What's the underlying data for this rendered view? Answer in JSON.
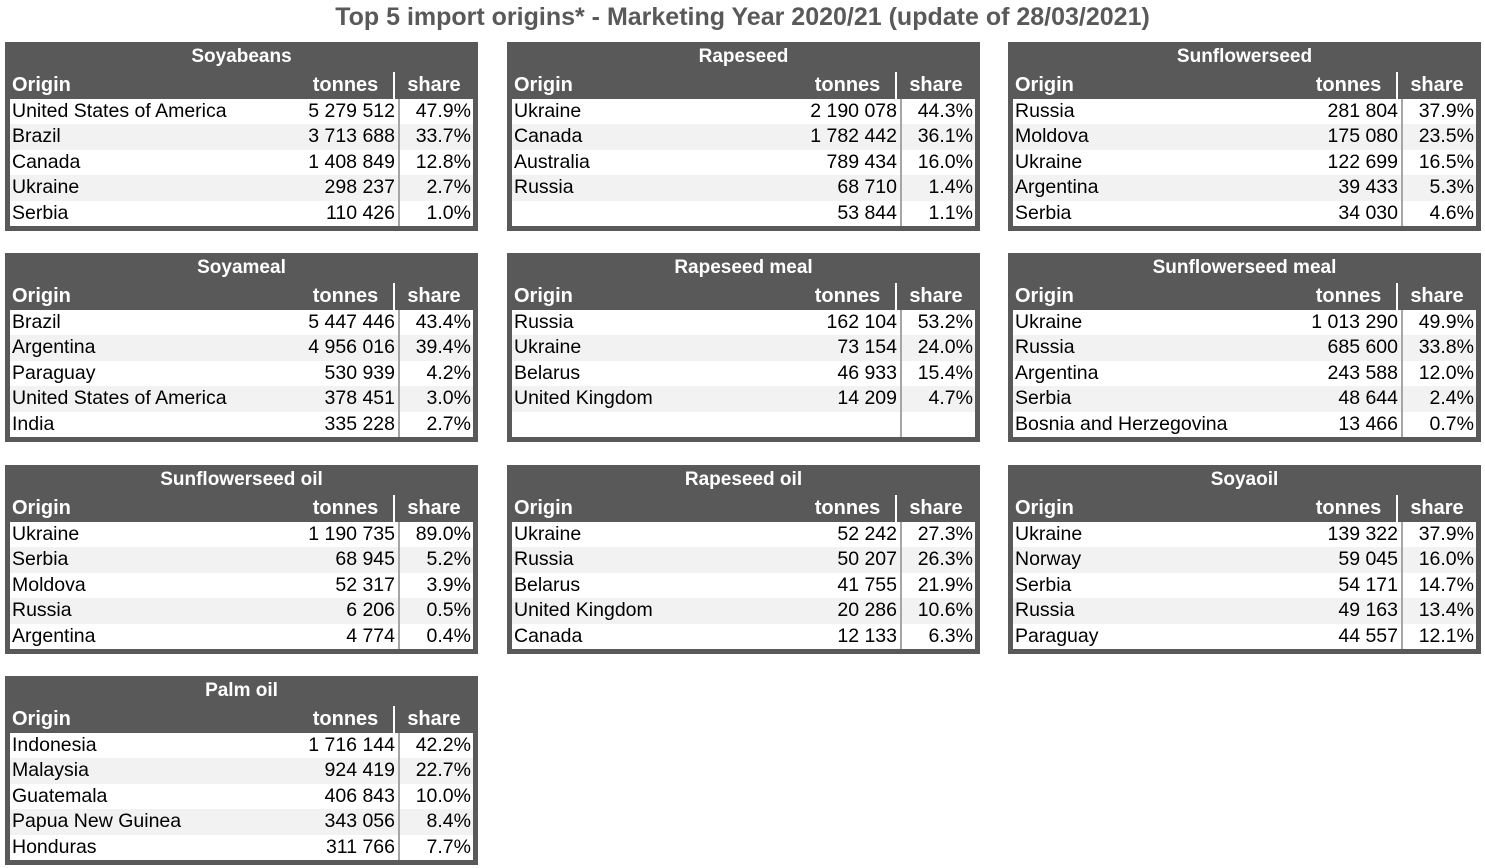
{
  "title": "Top 5 import origins* - Marketing Year 2020/21 (update of 28/03/2021)",
  "colors": {
    "header_bg": "#595959",
    "title_text": "#595959",
    "stripe": "#f2f2f2"
  },
  "columns": {
    "origin": "Origin",
    "tonnes": "tonnes",
    "share": "share"
  },
  "panels": [
    {
      "title": "Soyabeans",
      "rows": [
        {
          "origin": "United States of America",
          "tonnes": "5 279 512",
          "share": "47.9%"
        },
        {
          "origin": "Brazil",
          "tonnes": "3 713 688",
          "share": "33.7%"
        },
        {
          "origin": "Canada",
          "tonnes": "1 408 849",
          "share": "12.8%"
        },
        {
          "origin": "Ukraine",
          "tonnes": "298 237",
          "share": "2.7%"
        },
        {
          "origin": "Serbia",
          "tonnes": "110 426",
          "share": "1.0%"
        }
      ]
    },
    {
      "title": "Rapeseed",
      "rows": [
        {
          "origin": "Ukraine",
          "tonnes": "2 190 078",
          "share": "44.3%"
        },
        {
          "origin": "Canada",
          "tonnes": "1 782 442",
          "share": "36.1%"
        },
        {
          "origin": "Australia",
          "tonnes": "789 434",
          "share": "16.0%"
        },
        {
          "origin": "Russia",
          "tonnes": "68 710",
          "share": "1.4%"
        },
        {
          "origin": "",
          "tonnes": "53 844",
          "share": "1.1%"
        }
      ]
    },
    {
      "title": "Sunflowerseed",
      "rows": [
        {
          "origin": "Russia",
          "tonnes": "281 804",
          "share": "37.9%"
        },
        {
          "origin": "Moldova",
          "tonnes": "175 080",
          "share": "23.5%"
        },
        {
          "origin": "Ukraine",
          "tonnes": "122 699",
          "share": "16.5%"
        },
        {
          "origin": "Argentina",
          "tonnes": "39 433",
          "share": "5.3%"
        },
        {
          "origin": "Serbia",
          "tonnes": "34 030",
          "share": "4.6%"
        }
      ]
    },
    {
      "title": "Soyameal",
      "rows": [
        {
          "origin": "Brazil",
          "tonnes": "5 447 446",
          "share": "43.4%"
        },
        {
          "origin": "Argentina",
          "tonnes": "4 956 016",
          "share": "39.4%"
        },
        {
          "origin": "Paraguay",
          "tonnes": "530 939",
          "share": "4.2%"
        },
        {
          "origin": "United States of America",
          "tonnes": "378 451",
          "share": "3.0%"
        },
        {
          "origin": "India",
          "tonnes": "335 228",
          "share": "2.7%"
        }
      ]
    },
    {
      "title": "Rapeseed meal",
      "rows": [
        {
          "origin": "Russia",
          "tonnes": "162 104",
          "share": "53.2%"
        },
        {
          "origin": "Ukraine",
          "tonnes": "73 154",
          "share": "24.0%"
        },
        {
          "origin": "Belarus",
          "tonnes": "46 933",
          "share": "15.4%"
        },
        {
          "origin": "United Kingdom",
          "tonnes": "14 209",
          "share": "4.7%"
        },
        {
          "origin": "",
          "tonnes": "",
          "share": ""
        }
      ]
    },
    {
      "title": "Sunflowerseed meal",
      "rows": [
        {
          "origin": "Ukraine",
          "tonnes": "1 013 290",
          "share": "49.9%"
        },
        {
          "origin": "Russia",
          "tonnes": "685 600",
          "share": "33.8%"
        },
        {
          "origin": "Argentina",
          "tonnes": "243 588",
          "share": "12.0%"
        },
        {
          "origin": "Serbia",
          "tonnes": "48 644",
          "share": "2.4%"
        },
        {
          "origin": "Bosnia and Herzegovina",
          "tonnes": "13 466",
          "share": "0.7%"
        }
      ]
    },
    {
      "title": "Sunflowerseed oil",
      "rows": [
        {
          "origin": "Ukraine",
          "tonnes": "1 190 735",
          "share": "89.0%"
        },
        {
          "origin": "Serbia",
          "tonnes": "68 945",
          "share": "5.2%"
        },
        {
          "origin": "Moldova",
          "tonnes": "52 317",
          "share": "3.9%"
        },
        {
          "origin": "Russia",
          "tonnes": "6 206",
          "share": "0.5%"
        },
        {
          "origin": "Argentina",
          "tonnes": "4 774",
          "share": "0.4%"
        }
      ]
    },
    {
      "title": "Rapeseed oil",
      "rows": [
        {
          "origin": "Ukraine",
          "tonnes": "52 242",
          "share": "27.3%"
        },
        {
          "origin": "Russia",
          "tonnes": "50 207",
          "share": "26.3%"
        },
        {
          "origin": "Belarus",
          "tonnes": "41 755",
          "share": "21.9%"
        },
        {
          "origin": "United Kingdom",
          "tonnes": "20 286",
          "share": "10.6%"
        },
        {
          "origin": "Canada",
          "tonnes": "12 133",
          "share": "6.3%"
        }
      ]
    },
    {
      "title": "Soyaoil",
      "rows": [
        {
          "origin": "Ukraine",
          "tonnes": "139 322",
          "share": "37.9%"
        },
        {
          "origin": "Norway",
          "tonnes": "59 045",
          "share": "16.0%"
        },
        {
          "origin": "Serbia",
          "tonnes": "54 171",
          "share": "14.7%"
        },
        {
          "origin": "Russia",
          "tonnes": "49 163",
          "share": "13.4%"
        },
        {
          "origin": "Paraguay",
          "tonnes": "44 557",
          "share": "12.1%"
        }
      ]
    },
    {
      "title": "Palm oil",
      "rows": [
        {
          "origin": "Indonesia",
          "tonnes": "1 716 144",
          "share": "42.2%"
        },
        {
          "origin": "Malaysia",
          "tonnes": "924 419",
          "share": "22.7%"
        },
        {
          "origin": "Guatemala",
          "tonnes": "406 843",
          "share": "10.0%"
        },
        {
          "origin": "Papua New Guinea",
          "tonnes": "343 056",
          "share": "8.4%"
        },
        {
          "origin": "Honduras",
          "tonnes": "311 766",
          "share": "7.7%"
        }
      ]
    }
  ]
}
